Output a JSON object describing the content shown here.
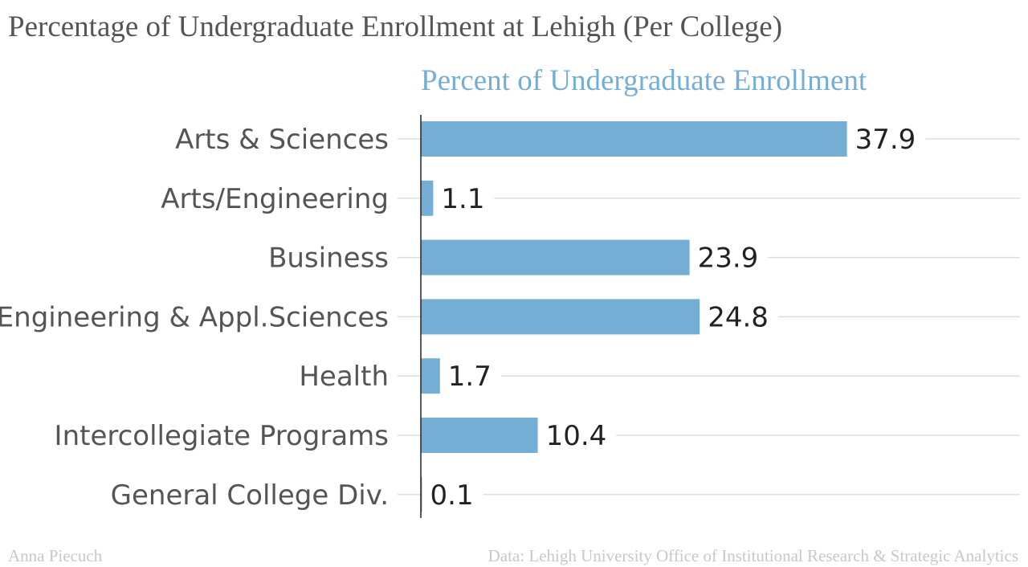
{
  "title": "Percentage of Undergraduate Enrollment at Lehigh (Per College)",
  "footer": {
    "author": "Anna Piecuch",
    "source": "Data: Lehigh University Office of Institutional Research & Strategic Analytics"
  },
  "colors": {
    "bar": "#74aed4",
    "series_label": "#74aed4",
    "gridline": "#dddddd",
    "axis": "#222222"
  },
  "chart_data": {
    "type": "bar",
    "orientation": "horizontal",
    "categories": [
      "Arts & Sciences",
      "Arts/Engineering",
      "Business",
      "Engineering & Appl.Sciences",
      "Health",
      "Intercollegiate Programs",
      "General College Div."
    ],
    "series": [
      {
        "name": "Percent of Undergraduate Enrollment",
        "values": [
          37.9,
          1.1,
          23.9,
          24.8,
          1.7,
          10.4,
          0.1
        ]
      }
    ],
    "value_labels": [
      "37.9",
      "1.1",
      "23.9",
      "24.8",
      "1.7",
      "10.4",
      "0.1"
    ],
    "title": "Percentage of Undergraduate Enrollment at Lehigh (Per College)",
    "xlabel": "",
    "ylabel": "",
    "xlim": [
      0,
      42
    ],
    "grid": true,
    "legend": "none"
  }
}
